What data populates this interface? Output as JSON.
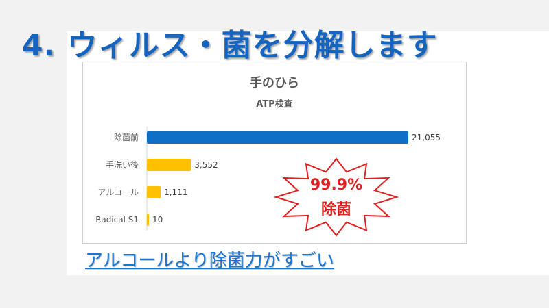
{
  "slide": {
    "title": "4.  ウィルス・菌を分解します",
    "caption": "アルコールより除菌力がすごい",
    "badge": {
      "percent": "99.9%",
      "label": "除菌"
    }
  },
  "colors": {
    "title": "#1565c0",
    "primary_bar": "#0f6fc6",
    "secondary_bar": "#ffc000",
    "badge_text": "#e02020",
    "badge_outline": "#e02020"
  },
  "chart_data": {
    "type": "bar",
    "orientation": "horizontal",
    "title": "手のひら",
    "subtitle": "ATP検査",
    "categories": [
      "除菌前",
      "手洗い後",
      "アルコール",
      "Radical S1"
    ],
    "values": [
      21055,
      3552,
      1111,
      10
    ],
    "value_labels": [
      "21,055",
      "3,552",
      "1,111",
      "10"
    ],
    "bar_colors": [
      "#0f6fc6",
      "#ffc000",
      "#ffc000",
      "#ffc000"
    ],
    "xlim": [
      0,
      21055
    ],
    "grid": false,
    "legend": "none"
  }
}
